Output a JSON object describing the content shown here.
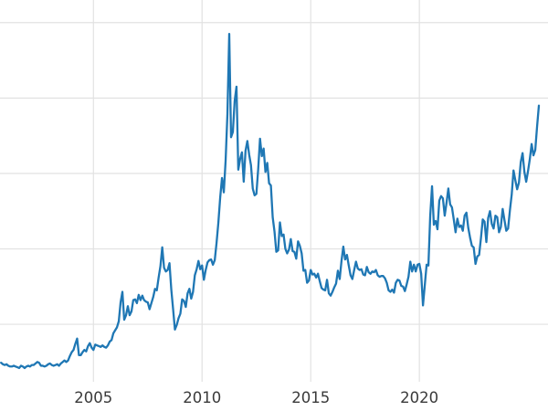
{
  "chart_data": {
    "type": "line",
    "title": "",
    "xlabel": "",
    "ylabel": "",
    "xlim": [
      2000.7,
      2025.92
    ],
    "ylim": [
      -1.5,
      53
    ],
    "grid": true,
    "legend": "none",
    "xticks": [
      {
        "value": 2005,
        "label": "2005"
      },
      {
        "value": 2010,
        "label": "2010"
      },
      {
        "value": 2015,
        "label": "2015"
      },
      {
        "value": 2020,
        "label": "2020"
      }
    ],
    "ygrid_values": [
      10,
      20,
      30,
      40,
      50
    ],
    "series": [
      {
        "name": "series-1",
        "color": "#1f77b4",
        "start_year": 2000.75,
        "interval_years": 0.0833333,
        "values": [
          4.9,
          4.7,
          4.6,
          4.7,
          4.5,
          4.4,
          4.4,
          4.5,
          4.4,
          4.3,
          4.2,
          4.5,
          4.4,
          4.2,
          4.4,
          4.5,
          4.4,
          4.6,
          4.6,
          4.8,
          5.0,
          4.9,
          4.5,
          4.5,
          4.4,
          4.5,
          4.7,
          4.8,
          4.6,
          4.5,
          4.6,
          4.7,
          4.5,
          4.8,
          5.0,
          5.2,
          5.0,
          5.2,
          5.8,
          6.3,
          6.6,
          7.4,
          8.1,
          5.9,
          5.9,
          6.3,
          6.6,
          6.4,
          7.1,
          7.5,
          6.9,
          6.6,
          7.3,
          7.2,
          7.1,
          7.0,
          7.2,
          7.0,
          6.9,
          7.2,
          7.7,
          7.9,
          8.8,
          9.2,
          9.6,
          10.4,
          12.9,
          14.3,
          10.6,
          11.2,
          12.4,
          11.2,
          11.7,
          13.2,
          13.3,
          12.8,
          13.9,
          13.2,
          13.8,
          13.2,
          13.0,
          12.9,
          12.0,
          12.8,
          13.6,
          14.7,
          14.5,
          16.2,
          17.7,
          20.2,
          17.5,
          17.0,
          17.2,
          18.1,
          14.6,
          12.0,
          9.3,
          9.9,
          10.8,
          11.4,
          13.3,
          13.1,
          12.3,
          14.1,
          14.7,
          13.4,
          14.3,
          16.5,
          17.3,
          18.4,
          17.3,
          17.8,
          15.9,
          17.2,
          18.2,
          18.5,
          18.6,
          17.9,
          18.5,
          20.8,
          23.5,
          26.8,
          29.4,
          27.5,
          31.7,
          37.9,
          48.5,
          34.8,
          35.5,
          39.6,
          41.5,
          30.5,
          31.9,
          32.8,
          28.9,
          33.0,
          34.3,
          32.5,
          31.1,
          28.0,
          27.1,
          27.3,
          30.6,
          34.6,
          32.3,
          33.3,
          30.2,
          31.4,
          28.7,
          28.4,
          24.2,
          22.3,
          19.6,
          19.8,
          23.5,
          21.7,
          21.9,
          20.0,
          19.4,
          19.9,
          21.3,
          19.7,
          19.6,
          18.7,
          21.0,
          20.4,
          19.4,
          17.1,
          17.2,
          15.5,
          15.8,
          17.2,
          16.6,
          16.7,
          16.2,
          16.7,
          15.7,
          14.8,
          14.6,
          14.5,
          15.9,
          14.1,
          13.8,
          14.3,
          14.9,
          15.4,
          17.1,
          16.0,
          18.4,
          20.3,
          18.6,
          19.2,
          17.8,
          16.5,
          16.0,
          17.2,
          18.3,
          17.4,
          17.2,
          17.3,
          16.6,
          16.5,
          17.6,
          16.9,
          16.7,
          17.0,
          16.9,
          17.2,
          16.5,
          16.3,
          16.4,
          16.4,
          16.1,
          15.5,
          14.5,
          14.3,
          14.6,
          14.2,
          15.5,
          15.9,
          15.8,
          15.1,
          15.0,
          14.4,
          15.3,
          16.3,
          18.3,
          17.0,
          17.9,
          17.0,
          17.9,
          18.0,
          16.7,
          12.5,
          15.2,
          17.9,
          17.8,
          24.4,
          28.3,
          23.2,
          23.7,
          22.6,
          26.4,
          27.0,
          26.7,
          24.4,
          26.1,
          28.0,
          25.9,
          25.5,
          23.9,
          22.2,
          24.0,
          22.9,
          23.1,
          22.4,
          24.4,
          24.8,
          22.8,
          21.5,
          20.4,
          20.2,
          18.0,
          19.0,
          19.2,
          21.4,
          23.9,
          23.6,
          20.9,
          24.1,
          25.0,
          23.3,
          22.7,
          24.4,
          24.2,
          22.2,
          22.9,
          25.3,
          23.8,
          22.4,
          22.7,
          25.1,
          27.2,
          30.4,
          29.1,
          27.9,
          28.8,
          31.5,
          32.7,
          30.2,
          28.9,
          30.3,
          31.9,
          33.9,
          32.4,
          33.1,
          36.2,
          39.0
        ]
      }
    ]
  },
  "style": {
    "background": "#ffffff",
    "grid_color": "#e2e2e2",
    "tick_label_color": "#3a3a3a",
    "line_width": 2.3
  }
}
